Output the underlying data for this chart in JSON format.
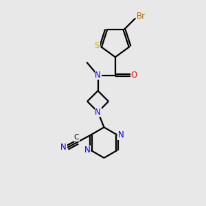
{
  "background_color": "#e8e8e8",
  "atom_colors": {
    "C": "#000000",
    "N": "#0000ee",
    "O": "#ff0000",
    "S": "#ccaa00",
    "Br": "#bb6600",
    "H": "#000000"
  },
  "bond_color": "#000000",
  "line_width": 1.6,
  "figsize": [
    3.0,
    3.0
  ],
  "dpi": 100
}
